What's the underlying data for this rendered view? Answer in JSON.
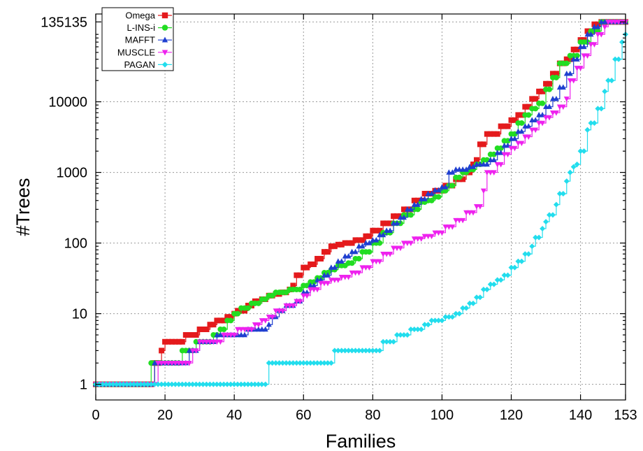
{
  "chart_data": {
    "type": "line",
    "xlabel": "Families",
    "ylabel": "#Trees",
    "xlim": [
      0,
      153
    ],
    "ylim": [
      0.6,
      175000
    ],
    "yscale": "log",
    "grid": true,
    "legend_position": "top-left",
    "x_ticks": [
      0,
      20,
      40,
      60,
      80,
      100,
      120,
      140,
      153
    ],
    "x_tick_labels": [
      "0",
      "20",
      "40",
      "60",
      "80",
      "100",
      "120",
      "140",
      "153"
    ],
    "y_ticks": [
      1,
      10,
      100,
      1000,
      10000,
      135135
    ],
    "y_tick_labels": [
      "1",
      "10",
      "100",
      "1000",
      "10000",
      "135135"
    ],
    "series": [
      {
        "name": "Omega",
        "color": "#e41a1c",
        "marker": "square",
        "points": [
          [
            0,
            1
          ],
          [
            16,
            1
          ],
          [
            17,
            2
          ],
          [
            18,
            2
          ],
          [
            19,
            3
          ],
          [
            20,
            4
          ],
          [
            24,
            4
          ],
          [
            26,
            5
          ],
          [
            29,
            5
          ],
          [
            30,
            6
          ],
          [
            33,
            7
          ],
          [
            35,
            8
          ],
          [
            37,
            8
          ],
          [
            38,
            9
          ],
          [
            40,
            10
          ],
          [
            41,
            11
          ],
          [
            44,
            13
          ],
          [
            46,
            15
          ],
          [
            48,
            16
          ],
          [
            50,
            18
          ],
          [
            52,
            19
          ],
          [
            54,
            20
          ],
          [
            56,
            22
          ],
          [
            57,
            25
          ],
          [
            58,
            35
          ],
          [
            60,
            45
          ],
          [
            62,
            50
          ],
          [
            64,
            60
          ],
          [
            66,
            75
          ],
          [
            68,
            90
          ],
          [
            70,
            95
          ],
          [
            72,
            100
          ],
          [
            75,
            110
          ],
          [
            78,
            125
          ],
          [
            80,
            150
          ],
          [
            83,
            190
          ],
          [
            86,
            240
          ],
          [
            89,
            300
          ],
          [
            92,
            400
          ],
          [
            95,
            500
          ],
          [
            98,
            550
          ],
          [
            101,
            650
          ],
          [
            104,
            800
          ],
          [
            107,
            1000
          ],
          [
            109,
            1300
          ],
          [
            110,
            1500
          ],
          [
            111,
            2500
          ],
          [
            113,
            3500
          ],
          [
            115,
            3500
          ],
          [
            117,
            4500
          ],
          [
            120,
            5500
          ],
          [
            122,
            6500
          ],
          [
            124,
            8500
          ],
          [
            126,
            11000
          ],
          [
            128,
            14000
          ],
          [
            130,
            18000
          ],
          [
            132,
            25000
          ],
          [
            134,
            35000
          ],
          [
            136,
            40000
          ],
          [
            138,
            55000
          ],
          [
            140,
            75000
          ],
          [
            142,
            100000
          ],
          [
            144,
            125000
          ],
          [
            146,
            135135
          ],
          [
            153,
            135135
          ]
        ]
      },
      {
        "name": "L-INS-i",
        "color": "#22dd22",
        "marker": "circle",
        "points": [
          [
            0,
            1
          ],
          [
            15,
            1
          ],
          [
            16,
            2
          ],
          [
            20,
            2
          ],
          [
            24,
            2
          ],
          [
            25,
            3
          ],
          [
            28,
            3
          ],
          [
            29,
            4
          ],
          [
            31,
            4
          ],
          [
            34,
            5
          ],
          [
            36,
            6
          ],
          [
            38,
            8
          ],
          [
            40,
            10
          ],
          [
            42,
            12
          ],
          [
            45,
            14
          ],
          [
            48,
            16
          ],
          [
            50,
            18
          ],
          [
            52,
            20
          ],
          [
            54,
            20
          ],
          [
            56,
            22
          ],
          [
            58,
            22
          ],
          [
            60,
            25
          ],
          [
            62,
            28
          ],
          [
            64,
            32
          ],
          [
            66,
            38
          ],
          [
            68,
            42
          ],
          [
            70,
            48
          ],
          [
            73,
            52
          ],
          [
            75,
            60
          ],
          [
            77,
            75
          ],
          [
            80,
            100
          ],
          [
            83,
            140
          ],
          [
            86,
            190
          ],
          [
            89,
            250
          ],
          [
            92,
            300
          ],
          [
            94,
            380
          ],
          [
            96,
            400
          ],
          [
            98,
            450
          ],
          [
            100,
            550
          ],
          [
            102,
            650
          ],
          [
            104,
            850
          ],
          [
            106,
            1000
          ],
          [
            108,
            1100
          ],
          [
            110,
            1300
          ],
          [
            112,
            1500
          ],
          [
            114,
            1800
          ],
          [
            116,
            2200
          ],
          [
            118,
            2800
          ],
          [
            120,
            3500
          ],
          [
            122,
            5000
          ],
          [
            124,
            6500
          ],
          [
            126,
            8000
          ],
          [
            128,
            9500
          ],
          [
            130,
            15000
          ],
          [
            132,
            22000
          ],
          [
            134,
            35000
          ],
          [
            137,
            45000
          ],
          [
            140,
            70000
          ],
          [
            143,
            100000
          ],
          [
            146,
            135135
          ],
          [
            153,
            135135
          ]
        ]
      },
      {
        "name": "MAFFT",
        "color": "#1f3fd0",
        "marker": "triangle-up",
        "points": [
          [
            0,
            1
          ],
          [
            16,
            1
          ],
          [
            17,
            2
          ],
          [
            20,
            2
          ],
          [
            26,
            2
          ],
          [
            27,
            3
          ],
          [
            29,
            3
          ],
          [
            30,
            4
          ],
          [
            34,
            4
          ],
          [
            35,
            5
          ],
          [
            38,
            5
          ],
          [
            40,
            5
          ],
          [
            42,
            5
          ],
          [
            44,
            6
          ],
          [
            48,
            6
          ],
          [
            50,
            7
          ],
          [
            51,
            9
          ],
          [
            53,
            11
          ],
          [
            55,
            13
          ],
          [
            58,
            15
          ],
          [
            60,
            20
          ],
          [
            62,
            25
          ],
          [
            64,
            30
          ],
          [
            66,
            35
          ],
          [
            68,
            45
          ],
          [
            70,
            55
          ],
          [
            72,
            65
          ],
          [
            74,
            75
          ],
          [
            76,
            90
          ],
          [
            78,
            100
          ],
          [
            80,
            110
          ],
          [
            82,
            130
          ],
          [
            84,
            150
          ],
          [
            86,
            190
          ],
          [
            88,
            230
          ],
          [
            90,
            300
          ],
          [
            92,
            350
          ],
          [
            94,
            420
          ],
          [
            96,
            500
          ],
          [
            98,
            560
          ],
          [
            100,
            620
          ],
          [
            102,
            1000
          ],
          [
            104,
            1100
          ],
          [
            106,
            1100
          ],
          [
            108,
            1200
          ],
          [
            110,
            1300
          ],
          [
            112,
            1300
          ],
          [
            114,
            1500
          ],
          [
            116,
            1900
          ],
          [
            118,
            2400
          ],
          [
            120,
            3000
          ],
          [
            122,
            3800
          ],
          [
            124,
            4500
          ],
          [
            126,
            5500
          ],
          [
            128,
            6500
          ],
          [
            130,
            8500
          ],
          [
            132,
            11000
          ],
          [
            134,
            16000
          ],
          [
            136,
            25000
          ],
          [
            138,
            40000
          ],
          [
            140,
            60000
          ],
          [
            142,
            90000
          ],
          [
            144,
            115000
          ],
          [
            146,
            135135
          ],
          [
            153,
            135135
          ]
        ]
      },
      {
        "name": "MUSCLE",
        "color": "#ee22ee",
        "marker": "triangle-down",
        "points": [
          [
            0,
            1
          ],
          [
            17,
            1
          ],
          [
            18,
            2
          ],
          [
            27,
            2
          ],
          [
            28,
            3
          ],
          [
            29,
            3
          ],
          [
            30,
            4
          ],
          [
            36,
            4
          ],
          [
            37,
            5
          ],
          [
            40,
            5
          ],
          [
            41,
            6
          ],
          [
            44,
            6
          ],
          [
            46,
            7
          ],
          [
            48,
            8
          ],
          [
            50,
            9
          ],
          [
            52,
            11
          ],
          [
            55,
            13
          ],
          [
            58,
            15
          ],
          [
            60,
            18
          ],
          [
            62,
            22
          ],
          [
            65,
            27
          ],
          [
            68,
            30
          ],
          [
            71,
            33
          ],
          [
            74,
            38
          ],
          [
            77,
            45
          ],
          [
            80,
            55
          ],
          [
            83,
            70
          ],
          [
            86,
            85
          ],
          [
            89,
            100
          ],
          [
            92,
            115
          ],
          [
            95,
            125
          ],
          [
            98,
            140
          ],
          [
            101,
            170
          ],
          [
            104,
            210
          ],
          [
            107,
            270
          ],
          [
            110,
            330
          ],
          [
            112,
            550
          ],
          [
            113,
            1000
          ],
          [
            116,
            1300
          ],
          [
            118,
            1800
          ],
          [
            120,
            2200
          ],
          [
            122,
            2600
          ],
          [
            124,
            3200
          ],
          [
            126,
            4000
          ],
          [
            128,
            5000
          ],
          [
            130,
            6000
          ],
          [
            132,
            7000
          ],
          [
            134,
            8500
          ],
          [
            136,
            11000
          ],
          [
            137,
            20000
          ],
          [
            139,
            30000
          ],
          [
            141,
            45000
          ],
          [
            143,
            65000
          ],
          [
            145,
            90000
          ],
          [
            147,
            115000
          ],
          [
            148,
            135135
          ],
          [
            153,
            135135
          ]
        ]
      },
      {
        "name": "PAGAN",
        "color": "#22dded",
        "marker": "diamond",
        "points": [
          [
            0,
            1
          ],
          [
            49,
            1
          ],
          [
            50,
            2
          ],
          [
            60,
            2
          ],
          [
            68,
            2
          ],
          [
            69,
            3
          ],
          [
            75,
            3
          ],
          [
            82,
            3
          ],
          [
            83,
            4
          ],
          [
            86,
            4
          ],
          [
            87,
            5
          ],
          [
            90,
            5
          ],
          [
            91,
            6
          ],
          [
            94,
            6
          ],
          [
            95,
            7
          ],
          [
            97,
            8
          ],
          [
            99,
            8
          ],
          [
            101,
            9
          ],
          [
            103,
            9
          ],
          [
            104,
            10
          ],
          [
            106,
            12
          ],
          [
            108,
            14
          ],
          [
            110,
            17
          ],
          [
            112,
            22
          ],
          [
            114,
            26
          ],
          [
            116,
            30
          ],
          [
            118,
            35
          ],
          [
            120,
            45
          ],
          [
            122,
            55
          ],
          [
            124,
            70
          ],
          [
            126,
            90
          ],
          [
            127,
            120
          ],
          [
            129,
            160
          ],
          [
            130,
            200
          ],
          [
            131,
            250
          ],
          [
            133,
            350
          ],
          [
            134,
            500
          ],
          [
            136,
            750
          ],
          [
            137,
            1000
          ],
          [
            138,
            1200
          ],
          [
            139,
            1300
          ],
          [
            140,
            2000
          ],
          [
            142,
            4000
          ],
          [
            143,
            5000
          ],
          [
            145,
            8000
          ],
          [
            147,
            14000
          ],
          [
            148,
            20000
          ],
          [
            150,
            40000
          ],
          [
            152,
            70000
          ],
          [
            153,
            90000
          ]
        ]
      }
    ]
  }
}
